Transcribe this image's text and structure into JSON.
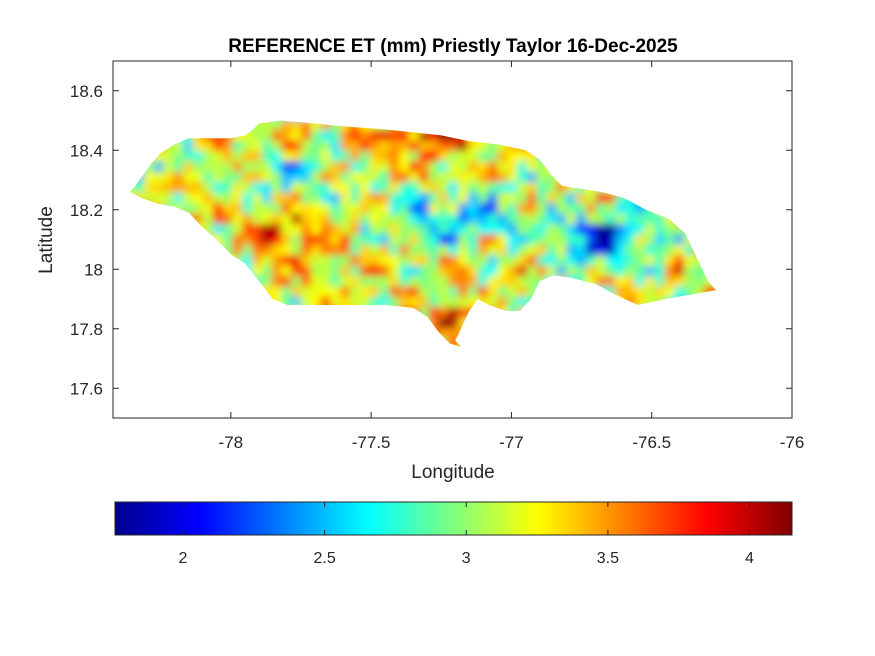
{
  "chart_data": {
    "type": "heatmap",
    "title": "REFERENCE ET (mm) Priestly Taylor 16-Dec-2025",
    "xlabel": "Longitude",
    "ylabel": "Latitude",
    "xlim": [
      -78.42,
      -76.0
    ],
    "ylim": [
      17.5,
      18.7
    ],
    "xticks": [
      -78,
      -77.5,
      -77,
      -76.5,
      -76
    ],
    "xtick_labels": [
      "-78",
      "-77.5",
      "-77",
      "-76.5",
      "-76"
    ],
    "yticks": [
      17.6,
      17.8,
      18.0,
      18.2,
      18.4,
      18.6
    ],
    "ytick_labels": [
      "17.6",
      "17.8",
      "18",
      "18.2",
      "18.4",
      "18.6"
    ],
    "colormap": "jet",
    "colorbar": {
      "orientation": "horizontal",
      "location": "bottom",
      "clim": [
        1.76,
        4.15
      ],
      "ticks": [
        2,
        2.5,
        3,
        3.5,
        4
      ],
      "tick_labels": [
        "2",
        "2.5",
        "3",
        "3.5",
        "4"
      ]
    },
    "outline": [
      [
        -78.36,
        18.26
      ],
      [
        -78.34,
        18.28
      ],
      [
        -78.31,
        18.32
      ],
      [
        -78.28,
        18.36
      ],
      [
        -78.25,
        18.39
      ],
      [
        -78.2,
        18.42
      ],
      [
        -78.15,
        18.44
      ],
      [
        -78.08,
        18.44
      ],
      [
        -78.0,
        18.44
      ],
      [
        -77.95,
        18.45
      ],
      [
        -77.92,
        18.47
      ],
      [
        -77.9,
        18.49
      ],
      [
        -77.82,
        18.5
      ],
      [
        -77.7,
        18.49
      ],
      [
        -77.6,
        18.48
      ],
      [
        -77.45,
        18.47
      ],
      [
        -77.35,
        18.46
      ],
      [
        -77.25,
        18.45
      ],
      [
        -77.15,
        18.43
      ],
      [
        -77.05,
        18.42
      ],
      [
        -76.95,
        18.4
      ],
      [
        -76.9,
        18.37
      ],
      [
        -76.86,
        18.32
      ],
      [
        -76.82,
        18.28
      ],
      [
        -76.75,
        18.27
      ],
      [
        -76.68,
        18.26
      ],
      [
        -76.6,
        18.24
      ],
      [
        -76.52,
        18.2
      ],
      [
        -76.44,
        18.17
      ],
      [
        -76.38,
        18.12
      ],
      [
        -76.35,
        18.06
      ],
      [
        -76.32,
        18.0
      ],
      [
        -76.3,
        17.96
      ],
      [
        -76.27,
        17.93
      ],
      [
        -76.33,
        17.92
      ],
      [
        -76.45,
        17.9
      ],
      [
        -76.55,
        17.88
      ],
      [
        -76.62,
        17.91
      ],
      [
        -76.7,
        17.95
      ],
      [
        -76.78,
        17.97
      ],
      [
        -76.85,
        17.98
      ],
      [
        -76.9,
        17.96
      ],
      [
        -76.93,
        17.9
      ],
      [
        -76.97,
        17.86
      ],
      [
        -77.02,
        17.86
      ],
      [
        -77.08,
        17.88
      ],
      [
        -77.12,
        17.9
      ],
      [
        -77.15,
        17.86
      ],
      [
        -77.18,
        17.8
      ],
      [
        -77.2,
        17.76
      ],
      [
        -77.18,
        17.74
      ],
      [
        -77.22,
        17.75
      ],
      [
        -77.26,
        17.79
      ],
      [
        -77.3,
        17.84
      ],
      [
        -77.35,
        17.87
      ],
      [
        -77.45,
        17.88
      ],
      [
        -77.55,
        17.88
      ],
      [
        -77.65,
        17.88
      ],
      [
        -77.72,
        17.88
      ],
      [
        -77.8,
        17.88
      ],
      [
        -77.85,
        17.9
      ],
      [
        -77.9,
        17.96
      ],
      [
        -77.95,
        18.02
      ],
      [
        -78.0,
        18.05
      ],
      [
        -78.05,
        18.1
      ],
      [
        -78.1,
        18.14
      ],
      [
        -78.15,
        18.19
      ],
      [
        -78.2,
        18.21
      ],
      [
        -78.26,
        18.22
      ],
      [
        -78.32,
        18.24
      ]
    ]
  }
}
